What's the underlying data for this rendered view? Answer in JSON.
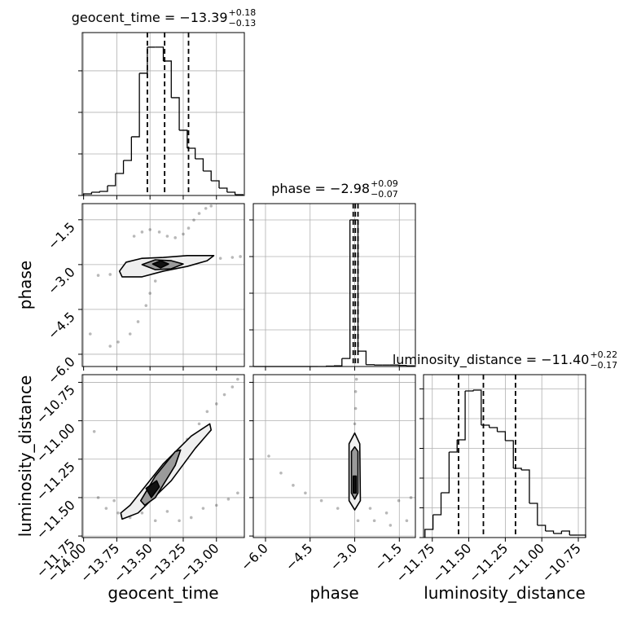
{
  "chart_data": [
    {
      "type": "histogram",
      "title": "geocent_time = −13.39",
      "title_sup": "+0.18",
      "title_sub": "−0.13",
      "bins": [
        -14.0,
        -13.94,
        -13.88,
        -13.82,
        -13.76,
        -13.7,
        -13.64,
        -13.58,
        -13.52,
        -13.46,
        -13.4,
        -13.34,
        -13.28,
        -13.22,
        -13.16,
        -13.1,
        -13.04,
        -12.98,
        -12.92,
        -12.86,
        -12.8
      ],
      "values": [
        39,
        78,
        98,
        235,
        529,
        843,
        1412,
        2941,
        3569,
        3569,
        3235,
        2353,
        1569,
        1137,
        882,
        588,
        353,
        176,
        78,
        20
      ],
      "quantiles": [
        -13.52,
        -13.39,
        -13.21
      ],
      "xlim": [
        -14.01,
        -12.79
      ],
      "ylim": [
        0,
        3920
      ],
      "xticks": [
        -14,
        -13.75,
        -13.5,
        -13.25,
        -13
      ],
      "yticks": [
        0,
        1000,
        2000,
        3000
      ],
      "grid": true
    },
    {
      "type": "scatter",
      "ylabel": "phase",
      "x": [
        -13.89,
        -13.8,
        -13.71,
        -13.62,
        -13.53,
        -13.37,
        -13.25,
        -13.16,
        -13.07,
        -12.97,
        -12.88,
        -12.82,
        -13.62,
        -13.56,
        -13.5,
        -13.43,
        -13.37,
        -13.31,
        -13.25,
        -13.21,
        -13.17,
        -13.13,
        -13.08,
        -13.04,
        -13.46,
        -13.5,
        -13.53,
        -13.59,
        -13.65,
        -13.74,
        -13.8,
        -13.95
      ],
      "y": [
        -3.36,
        -3.33,
        -3.22,
        -3.14,
        -3.06,
        -3.0,
        -2.95,
        -2.89,
        -2.81,
        -2.79,
        -2.76,
        -2.73,
        -2.05,
        -1.91,
        -1.83,
        -1.91,
        -2.05,
        -2.1,
        -1.98,
        -1.78,
        -1.51,
        -1.29,
        -1.12,
        -1.04,
        -3.55,
        -3.96,
        -4.37,
        -4.91,
        -5.32,
        -5.59,
        -5.73,
        -5.32
      ],
      "contours": [
        {
          "x": [
            -13.73,
            -13.68,
            -13.56,
            -13.4,
            -13.22,
            -13.02,
            -13.07,
            -13.22,
            -13.4,
            -13.56,
            -13.71
          ],
          "y": [
            -3.22,
            -2.92,
            -2.79,
            -2.76,
            -2.7,
            -2.7,
            -2.87,
            -3.06,
            -3.22,
            -3.41,
            -3.41
          ]
        },
        {
          "x": [
            -13.56,
            -13.46,
            -13.34,
            -13.25,
            -13.34,
            -13.46
          ],
          "y": [
            -3.0,
            -2.84,
            -2.87,
            -2.98,
            -3.14,
            -3.17
          ]
        },
        {
          "x": [
            -13.48,
            -13.42,
            -13.36,
            -13.42
          ],
          "y": [
            -2.98,
            -2.87,
            -2.98,
            -3.11
          ]
        }
      ],
      "contour_colors": [
        "#efefef",
        "#9a9a9a",
        "#111111"
      ],
      "color": "#000000",
      "xlim": [
        -14.01,
        -12.79
      ],
      "ylim": [
        -6.41,
        -0.96
      ],
      "xticks": [
        -14,
        -13.75,
        -13.5,
        -13.25,
        -13
      ],
      "yticks": [
        {
          "value": -6,
          "label": "−6.0"
        },
        {
          "value": -4.5,
          "label": "−4.5"
        },
        {
          "value": -3,
          "label": "−3.0"
        },
        {
          "value": -1.5,
          "label": "−1.5"
        }
      ],
      "grid": true
    },
    {
      "type": "histogram",
      "title": "phase = −2.98",
      "title_sup": "+0.09",
      "title_sub": "−0.07",
      "bins": [
        -6.4,
        -6.13,
        -5.86,
        -5.59,
        -5.32,
        -5.05,
        -4.78,
        -4.51,
        -4.24,
        -3.97,
        -3.7,
        -3.43,
        -3.16,
        -2.89,
        -2.62,
        -2.35,
        -2.08,
        -1.81,
        -1.54,
        -1.27,
        -1.0
      ],
      "values": [
        0,
        0,
        0,
        0,
        0,
        0,
        0,
        0,
        0,
        10,
        20,
        220,
        4000,
        420,
        50,
        40,
        40,
        40,
        30,
        20
      ],
      "quantiles": [
        -3.05,
        -2.98,
        -2.89
      ],
      "xlim": [
        -6.41,
        -0.96
      ],
      "ylim": [
        0,
        4444
      ],
      "xticks": [
        -6,
        -4.5,
        -3,
        -1.5
      ],
      "yticks": [
        0,
        1000,
        2000,
        3000,
        4000
      ],
      "grid": true
    },
    {
      "type": "scatter",
      "xlabel": "geocent_time",
      "ylabel": "luminosity_distance",
      "x": [
        -13.22,
        -13.13,
        -13.07,
        -13.0,
        -12.94,
        -12.88,
        -12.84,
        -13.89,
        -13.83,
        -13.74,
        -13.65,
        -13.56,
        -13.46,
        -13.37,
        -13.28,
        -13.19,
        -13.1,
        -13.0,
        -12.91,
        -12.84,
        -13.77,
        -13.92,
        -13.59
      ],
      "y": [
        -11.12,
        -11.02,
        -10.94,
        -10.89,
        -10.83,
        -10.78,
        -10.73,
        -11.5,
        -11.57,
        -11.6,
        -11.63,
        -11.6,
        -11.65,
        -11.59,
        -11.65,
        -11.63,
        -11.57,
        -11.55,
        -11.51,
        -11.47,
        -11.52,
        -11.07,
        -11.53
      ],
      "contours": [
        {
          "x": [
            -13.72,
            -13.65,
            -13.4,
            -13.19,
            -13.05,
            -13.04,
            -13.16,
            -13.34,
            -13.59,
            -13.71
          ],
          "y": [
            -11.6,
            -11.55,
            -11.28,
            -11.1,
            -11.02,
            -11.06,
            -11.18,
            -11.39,
            -11.6,
            -11.64
          ]
        },
        {
          "x": [
            -13.57,
            -13.46,
            -13.31,
            -13.27,
            -13.31,
            -13.46,
            -13.54
          ],
          "y": [
            -11.52,
            -11.36,
            -11.2,
            -11.19,
            -11.29,
            -11.5,
            -11.55
          ]
        },
        {
          "x": [
            -13.53,
            -13.45,
            -13.43,
            -13.49
          ],
          "y": [
            -11.44,
            -11.39,
            -11.43,
            -11.5
          ]
        }
      ],
      "contour_colors": [
        "#efefef",
        "#9a9a9a",
        "#111111"
      ],
      "color": "#000000",
      "xlim": [
        -14.01,
        -12.79
      ],
      "ylim": [
        -11.76,
        -10.7
      ],
      "xticks": [
        {
          "value": -14,
          "label": "−14.00"
        },
        {
          "value": -13.75,
          "label": "−13.75"
        },
        {
          "value": -13.5,
          "label": "−13.50"
        },
        {
          "value": -13.25,
          "label": "−13.25"
        },
        {
          "value": -13,
          "label": "−13.00"
        }
      ],
      "yticks": [
        {
          "value": -11.75,
          "label": "−11.75"
        },
        {
          "value": -11.5,
          "label": "−11.50"
        },
        {
          "value": -11.25,
          "label": "−11.25"
        },
        {
          "value": -11,
          "label": "−11.00"
        },
        {
          "value": -10.75,
          "label": "−10.75"
        }
      ],
      "grid": true
    },
    {
      "type": "scatter",
      "xlabel": "phase",
      "x": [
        -2.94,
        -2.97,
        -2.97,
        -3.0,
        -3.02,
        -3.0,
        -3.0,
        -3.0,
        -3.02,
        -5.89,
        -5.48,
        -5.07,
        -4.66,
        -4.12,
        -3.57,
        -2.89,
        -2.34,
        -1.93,
        -1.52,
        -1.11,
        -1.8,
        -1.25,
        -2.48
      ],
      "y": [
        -10.73,
        -10.81,
        -10.92,
        -11.02,
        -11.12,
        -11.23,
        -11.34,
        -11.44,
        -11.55,
        -11.23,
        -11.34,
        -11.42,
        -11.47,
        -11.52,
        -11.57,
        -11.65,
        -11.65,
        -11.6,
        -11.52,
        -11.5,
        -11.68,
        -11.65,
        -11.57
      ],
      "contours": [
        {
          "x": [
            -3.19,
            -3.0,
            -2.83,
            -2.81,
            -3.0,
            -3.19
          ],
          "y": [
            -11.15,
            -11.08,
            -11.15,
            -11.52,
            -11.58,
            -11.52
          ]
        },
        {
          "x": [
            -3.11,
            -3.0,
            -2.89,
            -2.89,
            -3.0,
            -3.11
          ],
          "y": [
            -11.2,
            -11.17,
            -11.2,
            -11.47,
            -11.51,
            -11.47
          ]
        },
        {
          "x": [
            -3.05,
            -2.95,
            -2.95,
            -3.05
          ],
          "y": [
            -11.36,
            -11.36,
            -11.47,
            -11.47
          ]
        }
      ],
      "contour_colors": [
        "#efefef",
        "#9a9a9a",
        "#111111"
      ],
      "color": "#000000",
      "xlim": [
        -6.41,
        -0.96
      ],
      "ylim": [
        -11.76,
        -10.7
      ],
      "xticks": [
        {
          "value": -6,
          "label": "−6.0"
        },
        {
          "value": -4.5,
          "label": "−4.5"
        },
        {
          "value": -3,
          "label": "−3.0"
        },
        {
          "value": -1.5,
          "label": "−1.5"
        }
      ],
      "yticks": [
        -11.75,
        -11.5,
        -11.25,
        -11,
        -10.75
      ],
      "grid": true
    },
    {
      "type": "histogram",
      "title": "luminosity_distance = −11.40",
      "title_sup": "+0.22",
      "title_sub": "−0.17",
      "xlabel": "luminosity_distance",
      "bins": [
        -11.8,
        -11.745,
        -11.69,
        -11.635,
        -11.58,
        -11.525,
        -11.47,
        -11.415,
        -11.36,
        -11.305,
        -11.25,
        -11.195,
        -11.14,
        -11.085,
        -11.03,
        -10.975,
        -10.92,
        -10.865,
        -10.81,
        -10.755,
        -10.7
      ],
      "values": [
        274,
        767,
        1507,
        2877,
        3288,
        4932,
        4959,
        3781,
        3699,
        3562,
        3260,
        2329,
        2274,
        1151,
        411,
        219,
        137,
        219,
        82,
        82
      ],
      "quantiles": [
        -11.57,
        -11.4,
        -11.18
      ],
      "xlim": [
        -11.81,
        -10.7
      ],
      "ylim": [
        0,
        5479
      ],
      "xticks": [
        {
          "value": -11.75,
          "label": "−11.75"
        },
        {
          "value": -11.5,
          "label": "−11.50"
        },
        {
          "value": -11.25,
          "label": "−11.25"
        },
        {
          "value": -11,
          "label": "−11.00"
        },
        {
          "value": -10.75,
          "label": "−10.75"
        }
      ],
      "yticks": [
        0,
        1000,
        2000,
        3000,
        4000,
        5000
      ],
      "grid": true
    }
  ]
}
